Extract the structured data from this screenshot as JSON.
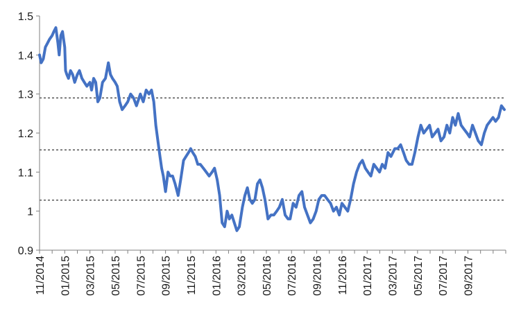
{
  "chart_data": {
    "type": "line",
    "title": "",
    "xlabel": "",
    "ylabel": "",
    "ylim": [
      0.9,
      1.5
    ],
    "yticks": [
      "0.9",
      "1",
      "1.1",
      "1.2",
      "1.3",
      "1.4",
      "1.5"
    ],
    "xlim": [
      "2014-11",
      "2017-12"
    ],
    "xticks": [
      "11/2014",
      "01/2015",
      "03/2015",
      "05/2015",
      "07/2015",
      "09/2015",
      "11/2015",
      "01/2016",
      "03/2016",
      "05/2016",
      "07/2016",
      "09/2016",
      "11/2016",
      "01/2017",
      "03/2017",
      "05/2017",
      "07/2017",
      "09/2017"
    ],
    "reference_lines": [
      1.29,
      1.157,
      1.028
    ],
    "line_color": "#4472C4",
    "reference_line_color": "#000000",
    "series": [
      {
        "x": [
          "2014-11-01",
          "2014-11-05",
          "2014-11-10",
          "2014-11-15",
          "2014-11-20",
          "2014-11-25",
          "2014-12-01",
          "2014-12-05",
          "2014-12-10",
          "2014-12-15",
          "2014-12-18",
          "2014-12-22",
          "2014-12-26",
          "2015-01-01",
          "2015-01-03",
          "2015-01-06",
          "2015-01-10",
          "2015-01-15",
          "2015-01-20",
          "2015-01-25",
          "2015-02-01",
          "2015-02-06",
          "2015-02-12",
          "2015-02-18",
          "2015-02-24",
          "2015-03-01",
          "2015-03-05",
          "2015-03-10",
          "2015-03-15",
          "2015-03-20",
          "2015-03-25",
          "2015-04-01",
          "2015-04-08",
          "2015-04-15",
          "2015-04-20",
          "2015-04-25",
          "2015-05-01",
          "2015-05-06",
          "2015-05-12",
          "2015-05-18",
          "2015-05-25",
          "2015-06-01",
          "2015-06-08",
          "2015-06-15",
          "2015-06-22",
          "2015-07-01",
          "2015-07-08",
          "2015-07-15",
          "2015-07-22",
          "2015-07-28",
          "2015-08-03",
          "2015-08-08",
          "2015-08-13",
          "2015-08-18",
          "2015-08-22",
          "2015-08-26",
          "2015-09-01",
          "2015-09-07",
          "2015-09-12",
          "2015-09-18",
          "2015-09-24",
          "2015-10-01",
          "2015-10-07",
          "2015-10-14",
          "2015-10-20",
          "2015-10-26",
          "2015-11-01",
          "2015-11-06",
          "2015-11-12",
          "2015-11-18",
          "2015-11-24",
          "2015-12-01",
          "2015-12-08",
          "2015-12-15",
          "2015-12-22",
          "2015-12-28",
          "2016-01-04",
          "2016-01-10",
          "2016-01-16",
          "2016-01-22",
          "2016-01-28",
          "2016-02-03",
          "2016-02-09",
          "2016-02-15",
          "2016-02-21",
          "2016-02-27",
          "2016-03-04",
          "2016-03-10",
          "2016-03-16",
          "2016-03-22",
          "2016-03-28",
          "2016-04-04",
          "2016-04-10",
          "2016-04-16",
          "2016-04-22",
          "2016-04-28",
          "2016-05-05",
          "2016-05-12",
          "2016-05-19",
          "2016-05-26",
          "2016-06-02",
          "2016-06-09",
          "2016-06-16",
          "2016-06-23",
          "2016-06-28",
          "2016-07-05",
          "2016-07-12",
          "2016-07-19",
          "2016-07-26",
          "2016-08-02",
          "2016-08-09",
          "2016-08-16",
          "2016-08-23",
          "2016-08-30",
          "2016-09-06",
          "2016-09-13",
          "2016-09-20",
          "2016-09-27",
          "2016-10-04",
          "2016-10-11",
          "2016-10-18",
          "2016-10-25",
          "2016-11-01",
          "2016-11-08",
          "2016-11-15",
          "2016-11-22",
          "2016-11-29",
          "2016-12-06",
          "2016-12-13",
          "2016-12-20",
          "2016-12-27",
          "2017-01-03",
          "2017-01-10",
          "2017-01-17",
          "2017-01-24",
          "2017-01-31",
          "2017-02-07",
          "2017-02-14",
          "2017-02-21",
          "2017-02-28",
          "2017-03-07",
          "2017-03-14",
          "2017-03-21",
          "2017-03-28",
          "2017-04-04",
          "2017-04-11",
          "2017-04-18",
          "2017-04-25",
          "2017-05-02",
          "2017-05-09",
          "2017-05-16",
          "2017-05-23",
          "2017-05-30",
          "2017-06-06",
          "2017-06-13",
          "2017-06-20",
          "2017-06-27",
          "2017-07-04",
          "2017-07-11",
          "2017-07-18",
          "2017-07-25",
          "2017-08-01",
          "2017-08-08",
          "2017-08-15",
          "2017-08-22",
          "2017-08-29",
          "2017-09-05",
          "2017-09-12",
          "2017-09-19",
          "2017-09-26",
          "2017-10-03",
          "2017-10-10",
          "2017-10-17",
          "2017-10-24",
          "2017-10-31",
          "2017-11-07",
          "2017-11-14",
          "2017-11-21",
          "2017-11-28"
        ],
        "y": [
          1.4,
          1.38,
          1.39,
          1.42,
          1.43,
          1.44,
          1.45,
          1.46,
          1.47,
          1.43,
          1.4,
          1.45,
          1.46,
          1.42,
          1.36,
          1.35,
          1.34,
          1.36,
          1.35,
          1.33,
          1.35,
          1.36,
          1.34,
          1.33,
          1.32,
          1.33,
          1.31,
          1.34,
          1.33,
          1.28,
          1.29,
          1.33,
          1.34,
          1.38,
          1.35,
          1.34,
          1.33,
          1.32,
          1.28,
          1.26,
          1.27,
          1.28,
          1.3,
          1.29,
          1.27,
          1.3,
          1.28,
          1.31,
          1.3,
          1.31,
          1.28,
          1.22,
          1.18,
          1.14,
          1.11,
          1.09,
          1.05,
          1.1,
          1.09,
          1.09,
          1.07,
          1.04,
          1.08,
          1.13,
          1.14,
          1.15,
          1.16,
          1.15,
          1.14,
          1.12,
          1.12,
          1.11,
          1.1,
          1.09,
          1.1,
          1.11,
          1.08,
          1.04,
          0.97,
          0.96,
          1.0,
          0.98,
          0.99,
          0.97,
          0.95,
          0.96,
          1.01,
          1.04,
          1.06,
          1.03,
          1.02,
          1.03,
          1.07,
          1.08,
          1.06,
          1.03,
          0.98,
          0.99,
          0.99,
          1.0,
          1.01,
          1.03,
          0.99,
          0.98,
          0.98,
          1.02,
          1.01,
          1.04,
          1.05,
          1.01,
          0.99,
          0.97,
          0.98,
          1.0,
          1.03,
          1.04,
          1.04,
          1.03,
          1.02,
          1.0,
          1.01,
          0.99,
          1.02,
          1.01,
          1.0,
          1.03,
          1.07,
          1.1,
          1.12,
          1.13,
          1.11,
          1.1,
          1.09,
          1.12,
          1.11,
          1.1,
          1.12,
          1.11,
          1.15,
          1.14,
          1.16,
          1.16,
          1.17,
          1.15,
          1.13,
          1.12,
          1.12,
          1.15,
          1.19,
          1.22,
          1.2,
          1.21,
          1.22,
          1.19,
          1.2,
          1.21,
          1.18,
          1.19,
          1.22,
          1.2,
          1.24,
          1.22,
          1.25,
          1.22,
          1.21,
          1.2,
          1.19,
          1.22,
          1.2,
          1.18,
          1.17,
          1.2,
          1.22,
          1.23,
          1.24,
          1.23,
          1.24,
          1.27,
          1.26
        ]
      }
    ]
  }
}
